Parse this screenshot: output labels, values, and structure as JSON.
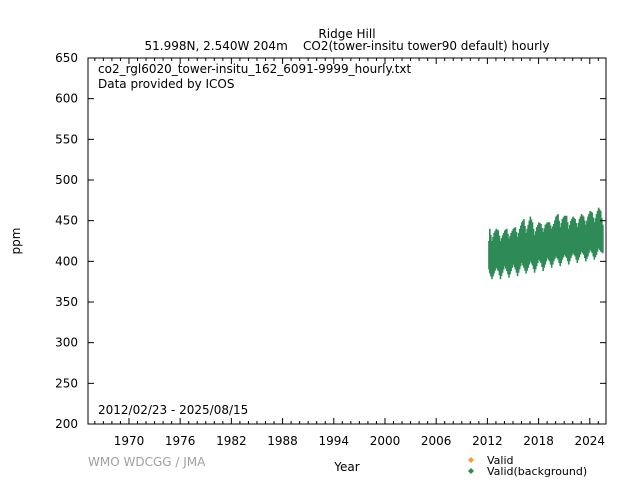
{
  "chart_data": {
    "type": "scatter",
    "title": "Ridge Hill",
    "subtitle": "51.998N, 2.540W 204m    CO2(tower-insitu tower90 default) hourly",
    "annotations": [
      "co2_rgl6020_tower-insitu_162_6091-9999_hourly.txt",
      "Data provided by ICOS",
      "2012/02/23 - 2025/08/15"
    ],
    "watermark": "WMO WDCGG / JMA",
    "xlabel": "Year",
    "ylabel": "ppm",
    "xlim": [
      1965.2,
      2025.9
    ],
    "ylim": [
      200,
      650
    ],
    "xticks": [
      1970,
      1976,
      1982,
      1988,
      1994,
      2000,
      2006,
      2012,
      2018,
      2024
    ],
    "yticks": [
      200,
      250,
      300,
      350,
      400,
      450,
      500,
      550,
      600,
      650
    ],
    "grid": false,
    "legend_position": "bottom-right",
    "series": [
      {
        "name": "Valid",
        "color": "#f0a030",
        "envelope": []
      },
      {
        "name": "Valid(background)",
        "color": "#2e8b57",
        "envelope_columns": [
          "year",
          "min_ppm",
          "max_ppm"
        ],
        "envelope": [
          [
            2012.15,
            390,
            425
          ],
          [
            2012.25,
            385,
            440
          ],
          [
            2012.5,
            378,
            425
          ],
          [
            2012.75,
            385,
            435
          ],
          [
            2013.0,
            392,
            440
          ],
          [
            2013.25,
            388,
            438
          ],
          [
            2013.5,
            378,
            425
          ],
          [
            2013.75,
            386,
            432
          ],
          [
            2014.0,
            394,
            438
          ],
          [
            2014.25,
            388,
            440
          ],
          [
            2014.5,
            380,
            428
          ],
          [
            2014.75,
            388,
            435
          ],
          [
            2015.0,
            396,
            440
          ],
          [
            2015.25,
            390,
            442
          ],
          [
            2015.5,
            382,
            430
          ],
          [
            2015.75,
            390,
            440
          ],
          [
            2016.0,
            398,
            448
          ],
          [
            2016.25,
            392,
            452
          ],
          [
            2016.5,
            385,
            435
          ],
          [
            2016.75,
            392,
            445
          ],
          [
            2017.0,
            400,
            455
          ],
          [
            2017.25,
            395,
            448
          ],
          [
            2017.5,
            386,
            432
          ],
          [
            2017.75,
            394,
            442
          ],
          [
            2018.0,
            402,
            448
          ],
          [
            2018.25,
            398,
            446
          ],
          [
            2018.5,
            388,
            436
          ],
          [
            2018.75,
            396,
            445
          ],
          [
            2019.0,
            404,
            448
          ],
          [
            2019.25,
            400,
            448
          ],
          [
            2019.5,
            392,
            440
          ],
          [
            2019.75,
            400,
            446
          ],
          [
            2020.0,
            406,
            455
          ],
          [
            2020.25,
            402,
            458
          ],
          [
            2020.5,
            394,
            442
          ],
          [
            2020.75,
            402,
            452
          ],
          [
            2021.0,
            408,
            456
          ],
          [
            2021.25,
            404,
            456
          ],
          [
            2021.5,
            396,
            440
          ],
          [
            2021.75,
            404,
            450
          ],
          [
            2022.0,
            410,
            455
          ],
          [
            2022.25,
            406,
            452
          ],
          [
            2022.5,
            398,
            442
          ],
          [
            2022.75,
            405,
            452
          ],
          [
            2023.0,
            412,
            458
          ],
          [
            2023.25,
            408,
            455
          ],
          [
            2023.5,
            400,
            445
          ],
          [
            2023.75,
            406,
            455
          ],
          [
            2024.0,
            414,
            462
          ],
          [
            2024.25,
            410,
            460
          ],
          [
            2024.5,
            402,
            448
          ],
          [
            2024.75,
            408,
            458
          ],
          [
            2025.0,
            416,
            466
          ],
          [
            2025.25,
            412,
            462
          ],
          [
            2025.5,
            410,
            445
          ],
          [
            2025.62,
            412,
            440
          ]
        ]
      }
    ]
  }
}
